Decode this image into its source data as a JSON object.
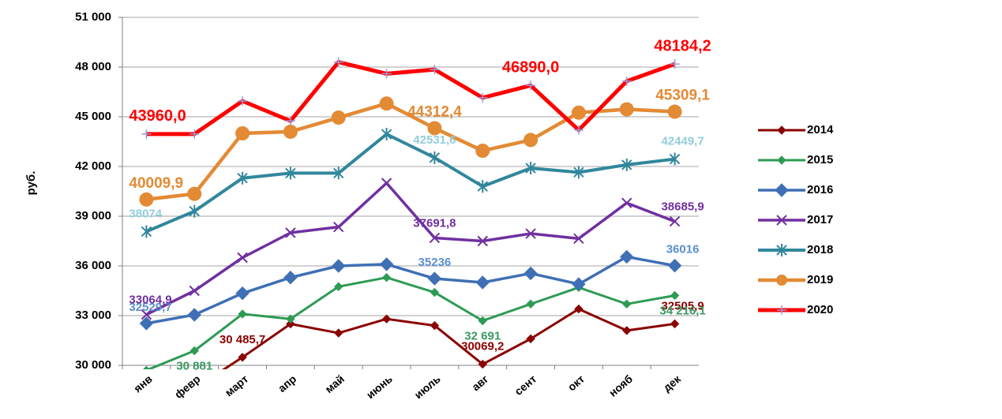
{
  "chart_data": {
    "type": "line",
    "y_label": "руб.",
    "categories": [
      "янв",
      "февр",
      "март",
      "апр",
      "май",
      "июнь",
      "июль",
      "авг",
      "сент",
      "окт",
      "нояб",
      "дек"
    ],
    "ylim": [
      30000,
      51000
    ],
    "yticks": [
      {
        "value": 30000,
        "label": "30 000"
      },
      {
        "value": 33000,
        "label": "33 000"
      },
      {
        "value": 36000,
        "label": "36 000"
      },
      {
        "value": 39000,
        "label": "39 000"
      },
      {
        "value": 42000,
        "label": "42 000"
      },
      {
        "value": 45000,
        "label": "45 000"
      },
      {
        "value": 48000,
        "label": "48 000"
      },
      {
        "value": 51000,
        "label": "51 000"
      }
    ],
    "grid": true,
    "legend": "right",
    "series": [
      {
        "name": "2014",
        "color": "#8b0000",
        "label_color": "#8b0000",
        "values": [
          28000,
          28600,
          30485.7,
          32500,
          31950,
          32800,
          32400,
          30069.2,
          31600,
          33400,
          32100,
          32505.9
        ],
        "value_labels": [
          null,
          null,
          "30 485,7",
          null,
          null,
          null,
          null,
          "30069,2",
          null,
          null,
          null,
          "32505,9"
        ]
      },
      {
        "name": "2015",
        "color": "#2e9b55",
        "label_color": "#3a9a62",
        "values": [
          29700,
          30881,
          33100,
          32800,
          34750,
          35300,
          34400,
          32691,
          33700,
          34700,
          33700,
          34216.1
        ],
        "value_labels": [
          null,
          "30 881",
          null,
          null,
          null,
          null,
          null,
          "32 691",
          null,
          null,
          null,
          "34 216,1"
        ]
      },
      {
        "name": "2016",
        "color": "#3f6fb5",
        "label_color": "#5b8fd0",
        "values": [
          32529.7,
          33050,
          34350,
          35300,
          36000,
          36100,
          35236,
          35000,
          35550,
          34900,
          36550,
          36016
        ],
        "value_labels": [
          "32529,7",
          null,
          null,
          null,
          null,
          null,
          "35236",
          null,
          null,
          null,
          null,
          "36016"
        ]
      },
      {
        "name": "2017",
        "color": "#7030a0",
        "label_color": "#7030a0",
        "values": [
          33064.9,
          34500,
          36500,
          38000,
          38350,
          41000,
          37691.8,
          37500,
          37950,
          37650,
          39800,
          38685.9
        ],
        "value_labels": [
          "33064,9",
          null,
          null,
          null,
          null,
          null,
          "37691,8",
          null,
          null,
          null,
          null,
          "38685,9"
        ]
      },
      {
        "name": "2018",
        "color": "#31879c",
        "label_color": "#92cddc",
        "values": [
          38074,
          39300,
          41300,
          41600,
          41600,
          43950,
          42531.6,
          40800,
          41900,
          41650,
          42100,
          42449.7
        ],
        "value_labels": [
          "38074",
          null,
          null,
          null,
          null,
          null,
          "42531,6",
          null,
          null,
          null,
          null,
          "42449,7"
        ]
      },
      {
        "name": "2019",
        "color": "#e38a34",
        "label_color": "#e38a34",
        "values": [
          40009.9,
          40350,
          44000,
          44100,
          44950,
          45800,
          44312.4,
          42950,
          43600,
          45250,
          45450,
          45309.1
        ],
        "value_labels": [
          "40009,9",
          null,
          null,
          null,
          null,
          null,
          "44312,4",
          null,
          null,
          null,
          null,
          "45309,1"
        ]
      },
      {
        "name": "2020",
        "color": "#ff0000",
        "label_color": "#ff0000",
        "values": [
          43960.0,
          43960,
          45950,
          44750,
          48300,
          47600,
          47850,
          46150,
          46890.0,
          44200,
          47150,
          48184.2
        ],
        "value_labels": [
          "43960,0",
          null,
          null,
          null,
          null,
          null,
          null,
          null,
          "46890,0",
          null,
          null,
          "48184,2"
        ]
      }
    ]
  }
}
